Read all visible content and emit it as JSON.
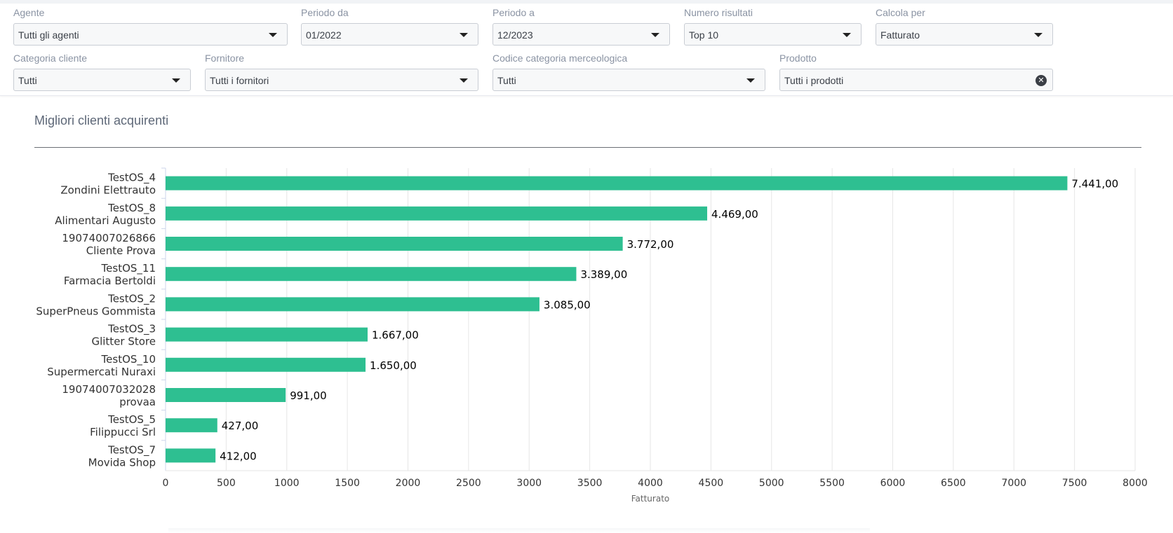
{
  "filters": {
    "agente": {
      "label": "Agente",
      "value": "Tutti gli agenti"
    },
    "periodo_da": {
      "label": "Periodo da",
      "value": "01/2022"
    },
    "periodo_a": {
      "label": "Periodo a",
      "value": "12/2023"
    },
    "numero_risultati": {
      "label": "Numero risultati",
      "value": "Top 10"
    },
    "calcola_per": {
      "label": "Calcola per",
      "value": "Fatturato"
    },
    "categoria_cliente": {
      "label": "Categoria cliente",
      "value": "Tutti"
    },
    "fornitore": {
      "label": "Fornitore",
      "value": "Tutti i fornitori"
    },
    "codice_categoria": {
      "label": "Codice categoria merceologica",
      "value": "Tutti"
    },
    "prodotto": {
      "label": "Prodotto",
      "value": "Tutti i prodotti"
    }
  },
  "panel": {
    "title": "Migliori clienti acquirenti"
  },
  "chart_data": {
    "type": "bar",
    "orientation": "horizontal",
    "categories": [
      [
        "TestOS_4",
        "Zondini Elettrauto"
      ],
      [
        "TestOS_8",
        "Alimentari Augusto"
      ],
      [
        "19074007026866",
        "Cliente Prova"
      ],
      [
        "TestOS_11",
        "Farmacia Bertoldi"
      ],
      [
        "TestOS_2",
        "SuperPneus Gommista"
      ],
      [
        "TestOS_3",
        "Glitter Store"
      ],
      [
        "TestOS_10",
        "Supermercati Nuraxi"
      ],
      [
        "19074007032028",
        "provaa"
      ],
      [
        "TestOS_5",
        "Filippucci Srl"
      ],
      [
        "TestOS_7",
        "Movida Shop"
      ]
    ],
    "values": [
      7441,
      4469,
      3772,
      3389,
      3085,
      1667,
      1650,
      991,
      427,
      412
    ],
    "data_labels": [
      "7.441,00",
      "4.469,00",
      "3.772,00",
      "3.389,00",
      "3.085,00",
      "1.667,00",
      "1.650,00",
      "991,00",
      "427,00",
      "412,00"
    ],
    "xlabel": "Fatturato",
    "xlim": [
      0,
      8000
    ],
    "xticks": [
      0,
      500,
      1000,
      1500,
      2000,
      2500,
      3000,
      3500,
      4000,
      4500,
      5000,
      5500,
      6000,
      6500,
      7000,
      7500,
      8000
    ],
    "grid": true,
    "bar_color": "#2ebf91"
  }
}
